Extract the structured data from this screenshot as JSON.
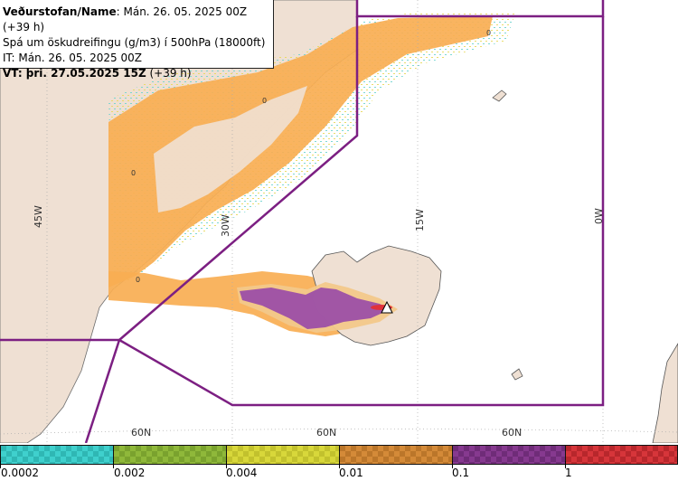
{
  "info": {
    "line1_label": "Veðurstofan/Name",
    "line1_value": ": Mán. 26. 05. 2025 00Z (+39 h)",
    "line2": "Spá um öskudreifingu (g/m3) í 500hPa (18000ft)",
    "line3": "IT: Mán. 26. 05. 2025 00Z",
    "line4_label": "VT: þri. 27.05.2025 15Z",
    "line4_value": " (+39 h)"
  },
  "map": {
    "meridians": [
      "45W",
      "30W",
      "15W",
      "0W"
    ],
    "parallels": [
      "60N",
      "60N",
      "60N"
    ],
    "contour_labels": [
      "0",
      "0",
      "0",
      "0"
    ],
    "colors": {
      "land": "#efe0d3",
      "sea": "#ffffff",
      "ash_low": "#f9ae52",
      "ash_mid": "#f2c88a",
      "ash_high": "#9c4fa6",
      "boundary": "#7c1f82"
    }
  },
  "legend": {
    "ticks": [
      "0.0002",
      "0.002",
      "0.004",
      "0.01",
      "0.1",
      "1"
    ],
    "colors": [
      "#3fd0cd",
      "#8fb83a",
      "#d8d73a",
      "#d48a38",
      "#86398f",
      "#d6353a"
    ]
  }
}
